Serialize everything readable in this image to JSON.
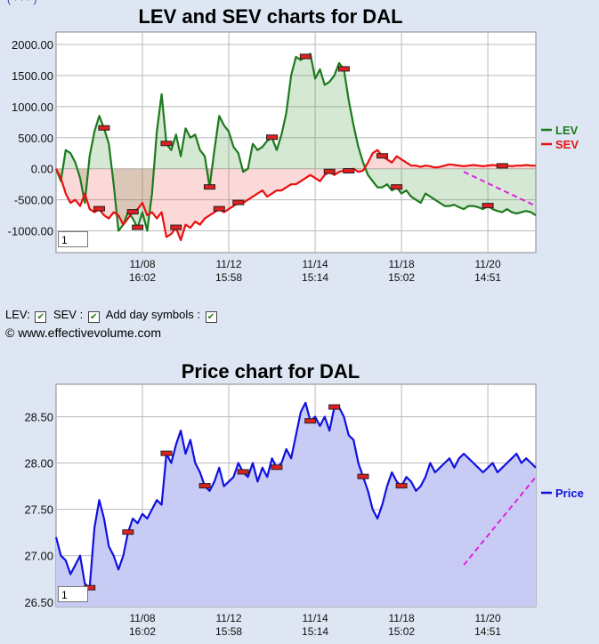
{
  "top_link_fragment": "(  ·  ·  ·  )",
  "controls": {
    "lev_label": "LEV:",
    "sev_label": "SEV :",
    "day_symbols_label": "Add day symbols :",
    "check_mark": "✔"
  },
  "copyright": "© www.effectivevolume.com",
  "chart_data": [
    {
      "type": "line",
      "title": "LEV and SEV charts for DAL",
      "ylim": [
        -1350,
        2200
      ],
      "yticks": [
        "2000.00",
        "1500.00",
        "1000.00",
        "500.00",
        "0.00",
        "-500.00",
        "-1000.00"
      ],
      "xticks": [
        {
          "date": "11/08",
          "time": "16:02"
        },
        {
          "date": "11/12",
          "time": "15:58"
        },
        {
          "date": "11/14",
          "time": "15:14"
        },
        {
          "date": "11/18",
          "time": "15:02"
        },
        {
          "date": "11/20",
          "time": "14:51"
        }
      ],
      "zoom_box": "1",
      "grid": true,
      "legend_position": "right",
      "series": [
        {
          "name": "LEV",
          "color": "#1e7a1e",
          "x": [
            0,
            1,
            2,
            3,
            4,
            5,
            6,
            7,
            8,
            9,
            10,
            11,
            12,
            13,
            14,
            15,
            16,
            17,
            18,
            19,
            20,
            21,
            22,
            23,
            24,
            25,
            26,
            27,
            28,
            29,
            30,
            31,
            32,
            33,
            34,
            35,
            36,
            37,
            38,
            39,
            40,
            41,
            42,
            43,
            44,
            45,
            46,
            47,
            48,
            49,
            50,
            51,
            52,
            53,
            54,
            55,
            56,
            57,
            58,
            59,
            60,
            61,
            62,
            63,
            64,
            65,
            66,
            67,
            68,
            69,
            70,
            71,
            72,
            73,
            74,
            75,
            76,
            77,
            78,
            79,
            80,
            81,
            82,
            83,
            84,
            85,
            86,
            87,
            88,
            89,
            90,
            91,
            92,
            93,
            94,
            95,
            96,
            97,
            98,
            99,
            100
          ],
          "values": [
            0,
            -200,
            300,
            250,
            100,
            -150,
            -550,
            200,
            600,
            850,
            650,
            400,
            -250,
            -1000,
            -900,
            -700,
            -800,
            -950,
            -700,
            -1000,
            -400,
            600,
            1200,
            400,
            300,
            550,
            200,
            650,
            500,
            550,
            300,
            200,
            -300,
            300,
            850,
            700,
            600,
            350,
            250,
            -50,
            0,
            400,
            300,
            350,
            450,
            500,
            300,
            550,
            900,
            1500,
            1800,
            1750,
            1800,
            1850,
            1450,
            1600,
            1350,
            1400,
            1500,
            1700,
            1600,
            1100,
            700,
            350,
            100,
            -100,
            -200,
            -300,
            -300,
            -250,
            -350,
            -300,
            -400,
            -350,
            -450,
            -500,
            -550,
            -400,
            -450,
            -500,
            -550,
            -600,
            -600,
            -580,
            -620,
            -650,
            -600,
            -600,
            -620,
            -650,
            -600,
            -650,
            -680,
            -700,
            -650,
            -700,
            -720,
            -700,
            -680,
            -700,
            -750
          ]
        },
        {
          "name": "SEV",
          "color": "#e81010",
          "x": [
            0,
            1,
            2,
            3,
            4,
            5,
            6,
            7,
            8,
            9,
            10,
            11,
            12,
            13,
            14,
            15,
            16,
            17,
            18,
            19,
            20,
            21,
            22,
            23,
            24,
            25,
            26,
            27,
            28,
            29,
            30,
            31,
            32,
            33,
            34,
            35,
            36,
            37,
            38,
            39,
            40,
            41,
            42,
            43,
            44,
            45,
            46,
            47,
            48,
            49,
            50,
            51,
            52,
            53,
            54,
            55,
            56,
            57,
            58,
            59,
            60,
            61,
            62,
            63,
            64,
            65,
            66,
            67,
            68,
            69,
            70,
            71,
            72,
            73,
            74,
            75,
            76,
            77,
            78,
            79,
            80,
            81,
            82,
            83,
            84,
            85,
            86,
            87,
            88,
            89,
            90,
            91,
            92,
            93,
            94,
            95,
            96,
            97,
            98,
            99,
            100
          ],
          "values": [
            0,
            -150,
            -400,
            -550,
            -500,
            -600,
            -400,
            -650,
            -700,
            -650,
            -750,
            -800,
            -700,
            -750,
            -900,
            -800,
            -700,
            -650,
            -550,
            -750,
            -700,
            -800,
            -700,
            -1100,
            -1050,
            -950,
            -1150,
            -900,
            -950,
            -850,
            -900,
            -800,
            -750,
            -700,
            -650,
            -700,
            -650,
            -600,
            -550,
            -550,
            -500,
            -450,
            -400,
            -350,
            -450,
            -400,
            -350,
            -350,
            -300,
            -250,
            -250,
            -200,
            -150,
            -100,
            -150,
            -200,
            -100,
            -50,
            -100,
            -50,
            -30,
            -40,
            0,
            -50,
            -30,
            100,
            250,
            300,
            200,
            150,
            100,
            200,
            150,
            100,
            50,
            50,
            30,
            50,
            40,
            20,
            30,
            50,
            70,
            60,
            50,
            40,
            50,
            60,
            50,
            40,
            50,
            60,
            50,
            40,
            50,
            40,
            50,
            50,
            60,
            50,
            50
          ]
        }
      ],
      "day_markers_lev": [
        10,
        17,
        23,
        32,
        45,
        52,
        60,
        71,
        90
      ],
      "day_markers_sev": [
        9,
        16,
        25,
        34,
        38,
        57,
        61,
        68,
        93
      ],
      "trendline": {
        "color": "#e020e0"
      }
    },
    {
      "type": "area",
      "title": "Price chart for DAL",
      "ylim": [
        26.45,
        28.85
      ],
      "yticks": [
        "28.50",
        "28.00",
        "27.50",
        "27.00",
        "26.50"
      ],
      "xticks": [
        {
          "date": "11/08",
          "time": "16:02"
        },
        {
          "date": "11/12",
          "time": "15:58"
        },
        {
          "date": "11/14",
          "time": "15:14"
        },
        {
          "date": "11/18",
          "time": "15:02"
        },
        {
          "date": "11/20",
          "time": "14:51"
        }
      ],
      "zoom_box": "1",
      "grid": true,
      "legend_position": "right",
      "series": [
        {
          "name": "Price",
          "color": "#1010e0",
          "fill": "#c8ccf4",
          "x": [
            0,
            1,
            2,
            3,
            4,
            5,
            6,
            7,
            8,
            9,
            10,
            11,
            12,
            13,
            14,
            15,
            16,
            17,
            18,
            19,
            20,
            21,
            22,
            23,
            24,
            25,
            26,
            27,
            28,
            29,
            30,
            31,
            32,
            33,
            34,
            35,
            36,
            37,
            38,
            39,
            40,
            41,
            42,
            43,
            44,
            45,
            46,
            47,
            48,
            49,
            50,
            51,
            52,
            53,
            54,
            55,
            56,
            57,
            58,
            59,
            60,
            61,
            62,
            63,
            64,
            65,
            66,
            67,
            68,
            69,
            70,
            71,
            72,
            73,
            74,
            75,
            76,
            77,
            78,
            79,
            80,
            81,
            82,
            83,
            84,
            85,
            86,
            87,
            88,
            89,
            90,
            91,
            92,
            93,
            94,
            95,
            96,
            97,
            98,
            99,
            100
          ],
          "values": [
            27.2,
            27.0,
            26.95,
            26.8,
            26.9,
            27.0,
            26.7,
            26.65,
            27.3,
            27.6,
            27.4,
            27.1,
            27.0,
            26.85,
            27.0,
            27.25,
            27.4,
            27.35,
            27.45,
            27.4,
            27.5,
            27.6,
            27.55,
            28.1,
            28.0,
            28.2,
            28.35,
            28.1,
            28.25,
            28.0,
            27.9,
            27.75,
            27.7,
            27.8,
            27.95,
            27.75,
            27.8,
            27.85,
            28.0,
            27.9,
            27.85,
            28.0,
            27.8,
            27.95,
            27.85,
            28.05,
            27.95,
            28.0,
            28.15,
            28.05,
            28.3,
            28.55,
            28.65,
            28.45,
            28.5,
            28.4,
            28.5,
            28.35,
            28.6,
            28.6,
            28.5,
            28.3,
            28.25,
            28.0,
            27.85,
            27.7,
            27.5,
            27.4,
            27.55,
            27.75,
            27.9,
            27.8,
            27.75,
            27.85,
            27.8,
            27.7,
            27.75,
            27.85,
            28.0,
            27.9,
            27.95,
            28.0,
            28.05,
            27.95,
            28.05,
            28.1,
            28.05,
            28.0,
            27.95,
            27.9,
            27.95,
            28.0,
            27.9,
            27.95,
            28.0,
            28.05,
            28.1,
            28.0,
            28.05,
            28.0,
            27.95
          ],
          "markers": [
            7,
            15,
            23,
            31,
            39,
            46,
            53,
            58,
            64,
            72
          ]
        }
      ],
      "trendline": {
        "color": "#e020e0"
      }
    }
  ]
}
